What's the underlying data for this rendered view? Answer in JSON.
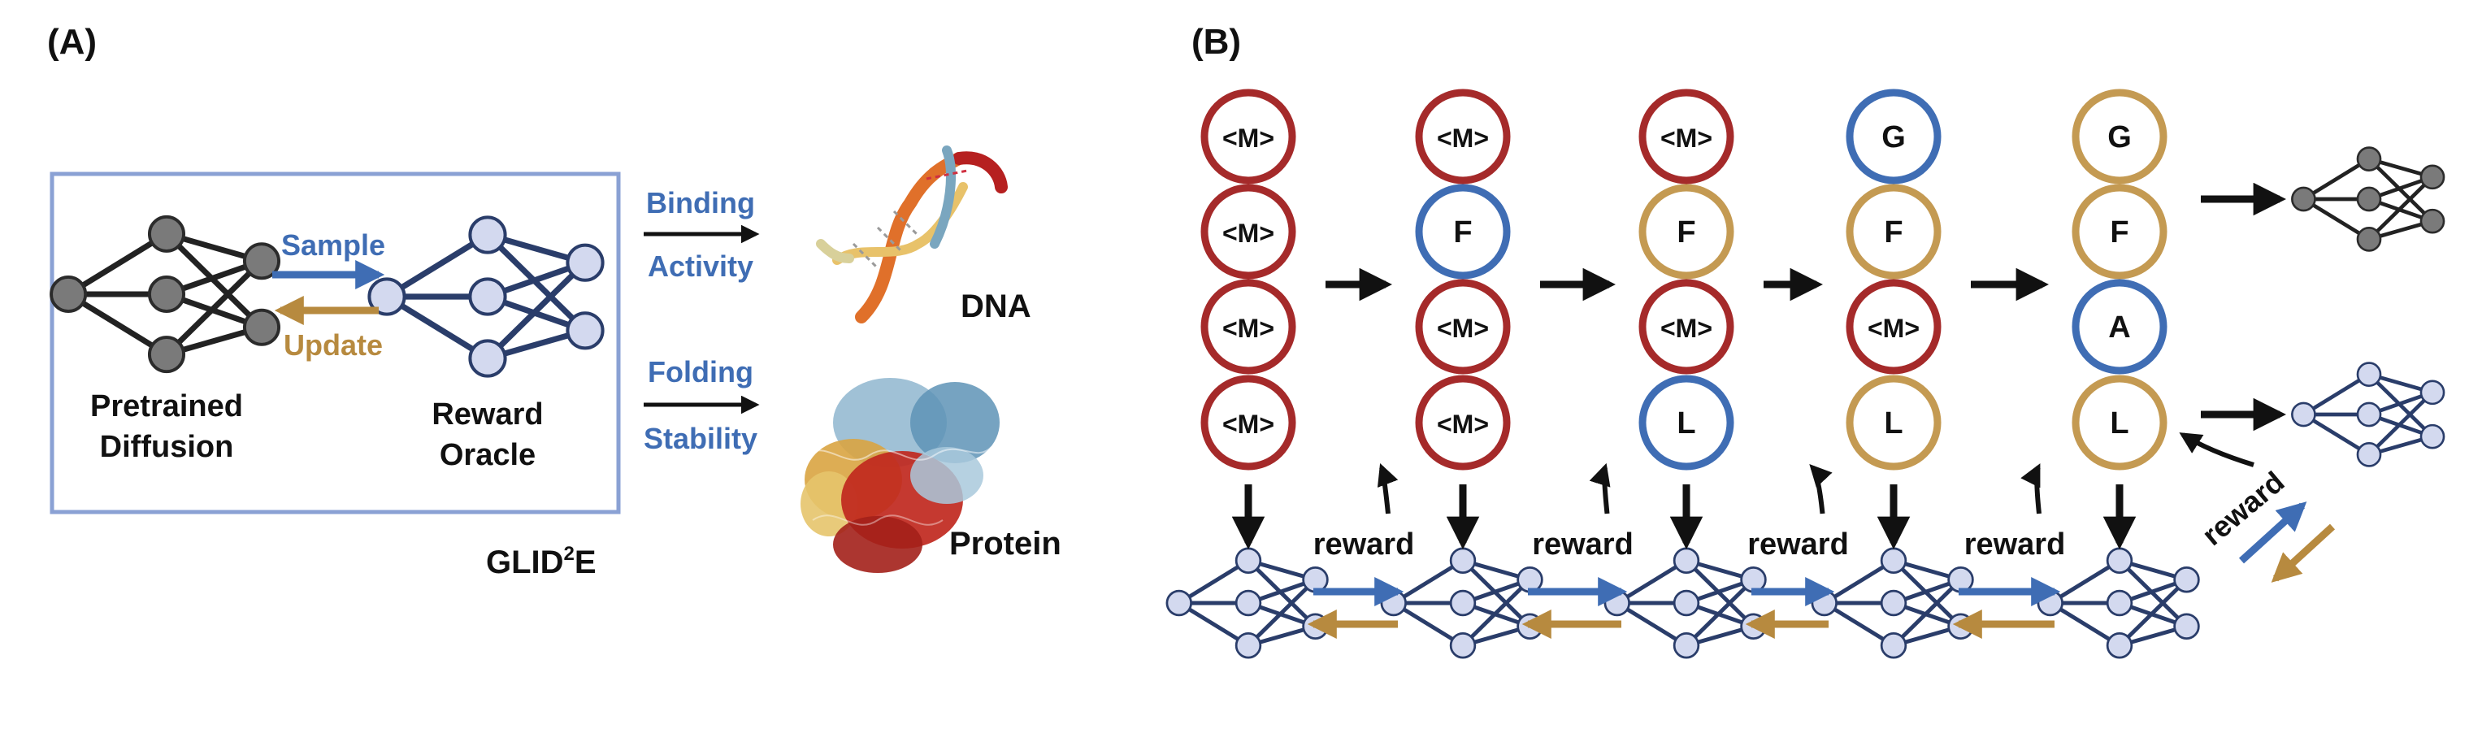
{
  "panel_a": {
    "label": "(A)",
    "pretrained_label_1": "Pretrained",
    "pretrained_label_2": "Diffusion",
    "reward_label_1": "Reward",
    "reward_label_2": "Oracle",
    "sample_label": "Sample",
    "update_label": "Update",
    "method_name": "GLID",
    "method_sup": "2",
    "method_suffix": "E",
    "binding_1": "Binding",
    "binding_2": "Activity",
    "folding_1": "Folding",
    "folding_2": "Stability",
    "dna_label": "DNA",
    "protein_label": "Protein"
  },
  "panel_b": {
    "label": "(B)",
    "reward_label": "reward",
    "columns": [
      {
        "tokens": [
          {
            "text": "<M>",
            "state": "masked"
          },
          {
            "text": "<M>",
            "state": "masked"
          },
          {
            "text": "<M>",
            "state": "masked"
          },
          {
            "text": "<M>",
            "state": "masked"
          }
        ]
      },
      {
        "tokens": [
          {
            "text": "<M>",
            "state": "masked"
          },
          {
            "text": "F",
            "state": "new"
          },
          {
            "text": "<M>",
            "state": "masked"
          },
          {
            "text": "<M>",
            "state": "masked"
          }
        ]
      },
      {
        "tokens": [
          {
            "text": "<M>",
            "state": "masked"
          },
          {
            "text": "F",
            "state": "fixed"
          },
          {
            "text": "<M>",
            "state": "masked"
          },
          {
            "text": "L",
            "state": "new"
          }
        ]
      },
      {
        "tokens": [
          {
            "text": "G",
            "state": "new"
          },
          {
            "text": "F",
            "state": "fixed"
          },
          {
            "text": "<M>",
            "state": "masked"
          },
          {
            "text": "L",
            "state": "fixed"
          }
        ]
      },
      {
        "tokens": [
          {
            "text": "G",
            "state": "fixed"
          },
          {
            "text": "F",
            "state": "fixed"
          },
          {
            "text": "A",
            "state": "new"
          },
          {
            "text": "L",
            "state": "fixed"
          }
        ]
      }
    ]
  },
  "colors": {
    "masked": "#a52a2a",
    "new": "#3f6db4",
    "fixed": "#c49a52",
    "sample_arrow": "#3f6db4",
    "update_arrow": "#b78a3f",
    "node_light": "#d3d9ef",
    "node_dark": "#7a7a7a",
    "edge_light": "#2a3d6a",
    "edge_dark": "#222222",
    "frame": "#8aa1d4"
  }
}
